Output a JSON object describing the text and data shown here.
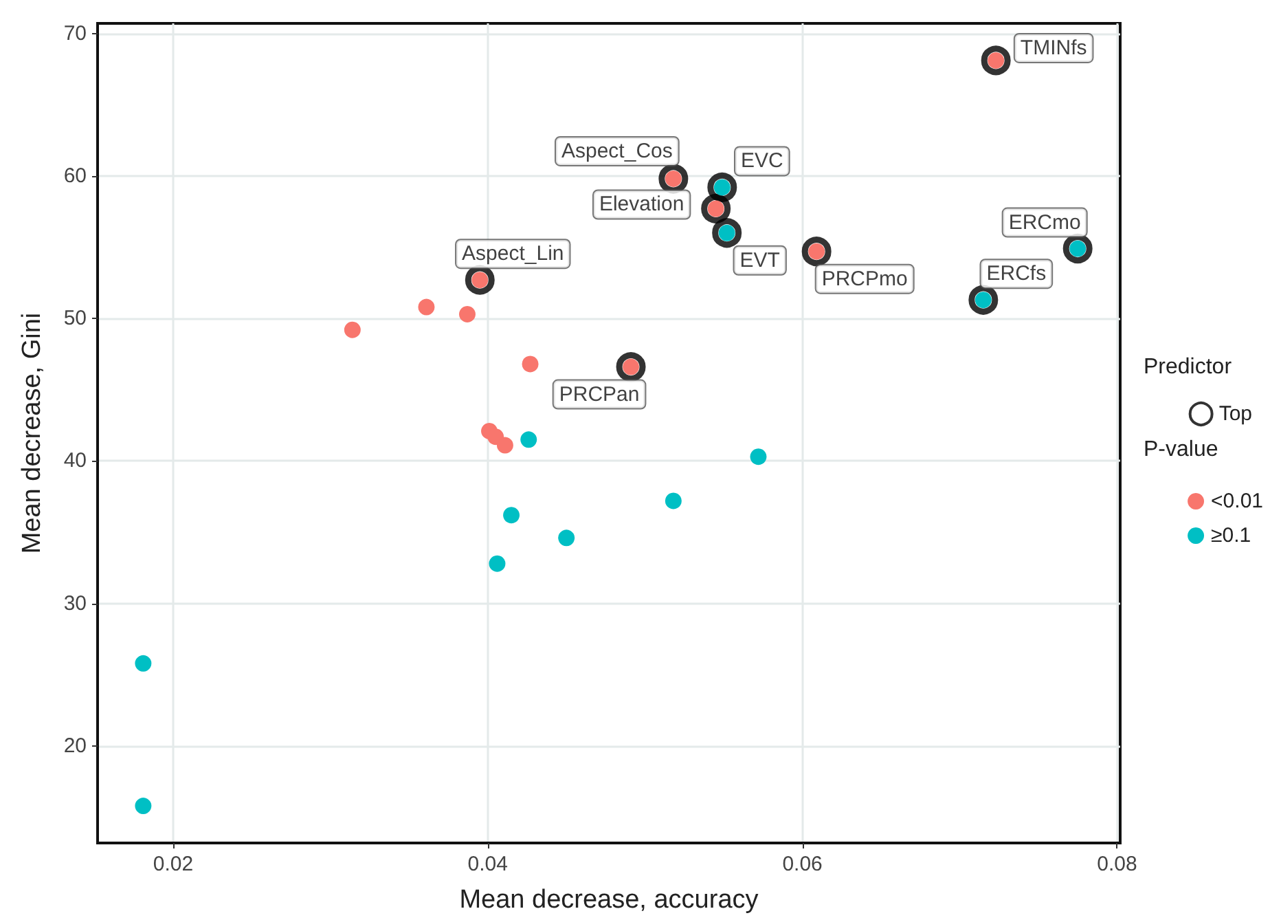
{
  "chart_data": {
    "type": "scatter",
    "xlabel": "Mean decrease, accuracy",
    "ylabel": "Mean decrease, Gini",
    "legend_title": "Predictor",
    "xlim": [
      0.0152,
      0.0802
    ],
    "ylim": [
      13.2,
      70.7
    ],
    "xticks": [
      0.02,
      0.04,
      0.06,
      0.08
    ],
    "yticks": [
      20,
      30,
      40,
      50,
      60,
      70
    ],
    "grid": true,
    "legend": "right",
    "marker": "circle",
    "series": [
      {
        "name": "Top",
        "color": "#000000",
        "x": [
          0.0395,
          0.0491,
          0.0723,
          0.0518,
          0.0549,
          0.0545,
          0.0552,
          0.0609,
          0.0775,
          0.0715
        ],
        "values": [
          52.7,
          46.6,
          68.1,
          59.8,
          59.2,
          57.7,
          56.0,
          54.7,
          54.9,
          51.3
        ]
      },
      {
        "name": "<0.01",
        "color": "#f8766d",
        "x": [
          0.0395,
          0.0491,
          0.0723,
          0.0518,
          0.0545,
          0.0609,
          0.0361,
          0.0387,
          0.0314,
          0.0427,
          0.0401,
          0.0405,
          0.0411
        ],
        "values": [
          52.7,
          46.6,
          68.1,
          59.8,
          57.7,
          54.7,
          50.8,
          50.3,
          49.2,
          46.8,
          42.1,
          41.7,
          41.1
        ]
      },
      {
        "name": "≥0.1",
        "color": "#00bfc4",
        "x": [
          0.0549,
          0.0552,
          0.0775,
          0.0715,
          0.0426,
          0.0572,
          0.0518,
          0.0415,
          0.045,
          0.0406,
          0.0181,
          0.0181
        ],
        "values": [
          59.2,
          56.0,
          54.9,
          51.3,
          41.5,
          40.3,
          37.2,
          36.2,
          34.6,
          32.8,
          25.8,
          15.8
        ]
      }
    ],
    "annotations": [
      "P-value",
      {
        "text": "Aspect_Lin",
        "x": 0.0395,
        "y": 52.7
      },
      {
        "text": "PRCPan",
        "x": 0.0491,
        "y": 46.6
      },
      {
        "text": "TMINfs",
        "x": 0.0723,
        "y": 68.1
      },
      {
        "text": "Aspect_Cos",
        "x": 0.0518,
        "y": 59.8
      },
      {
        "text": "EVC",
        "x": 0.0549,
        "y": 59.2
      },
      {
        "text": "Elevation",
        "x": 0.0545,
        "y": 57.7
      },
      {
        "text": "EVT",
        "x": 0.0552,
        "y": 56.0
      },
      {
        "text": "PRCPmo",
        "x": 0.0609,
        "y": 54.7
      },
      {
        "text": "ERCmo",
        "x": 0.0775,
        "y": 54.9
      },
      {
        "text": "ERCfs",
        "x": 0.0715,
        "y": 51.3
      }
    ]
  }
}
